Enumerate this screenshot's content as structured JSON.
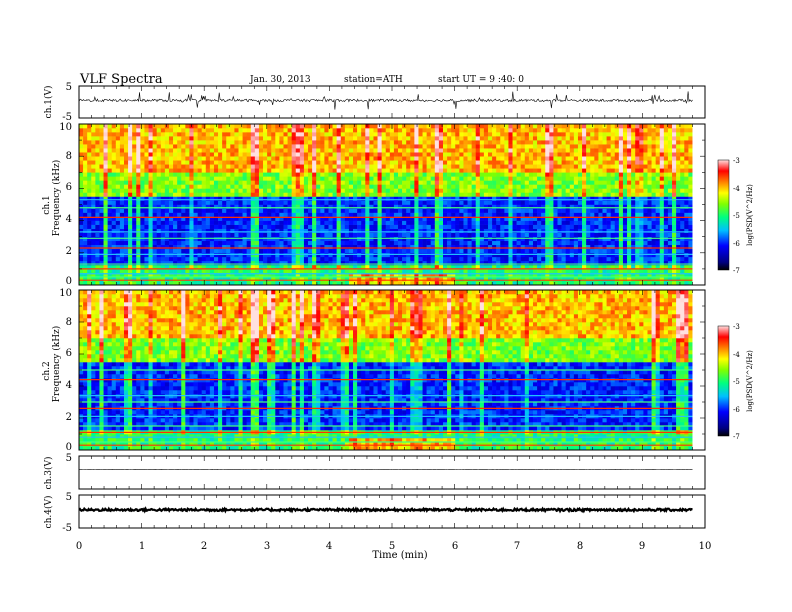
{
  "chart_data": {
    "type": "heatmap",
    "title": "VLF  Spectra",
    "header": {
      "date": "Jan. 30, 2013",
      "station": "station=ATH",
      "start": "start  UT  =   9 :40: 0"
    },
    "xlabel": "Time  (min)",
    "xlim": [
      0,
      10
    ],
    "xticks": [
      "0",
      "1",
      "2",
      "3",
      "4",
      "5",
      "6",
      "7",
      "8",
      "9",
      "10"
    ],
    "data_end_min": 9.8,
    "panels": [
      {
        "id": "ch1-waveform",
        "type": "line",
        "ylabel": "ch.1(V)",
        "ylim": [
          -5,
          5
        ],
        "yticks": [
          "5",
          "-5"
        ],
        "baseline_v": 0.5,
        "noise_v": 0.4,
        "burst_v": 2.5
      },
      {
        "id": "ch1-spectrogram",
        "type": "heatmap",
        "ylabel_top": "ch.1",
        "ylabel": "Frequency  (kHz)",
        "ylim": [
          0,
          10
        ],
        "yticks": [
          "0",
          "2",
          "4",
          "6",
          "8",
          "10"
        ],
        "colorbar": {
          "label": "log(PSD(V^2/Hz)",
          "range": [
            -7,
            -3
          ],
          "ticks": [
            "-3",
            "-4",
            "-5",
            "-6",
            "-7"
          ]
        },
        "lines_khz": [
          0.3,
          0.5,
          0.7,
          1.0,
          1.3,
          1.9,
          2.3,
          2.9,
          3.3,
          4.2,
          4.8,
          5.3
        ],
        "band_shift_min": 4.3
      },
      {
        "id": "ch2-spectrogram",
        "type": "heatmap",
        "ylabel_top": "ch.2",
        "ylabel": "Frequency  (kHz)",
        "ylim": [
          0,
          10
        ],
        "yticks": [
          "0",
          "2",
          "4",
          "6",
          "8",
          "10"
        ],
        "colorbar": {
          "label": "log(PSD(V^2/Hz)",
          "range": [
            -7,
            -3
          ],
          "ticks": [
            "-3",
            "-4",
            "-5",
            "-6",
            "-7"
          ]
        },
        "lines_khz": [
          0.3,
          0.5,
          0.8,
          1.1,
          1.5,
          2.1,
          2.6,
          3.0,
          3.4,
          4.4,
          5.0
        ],
        "band_shift_min": 4.3
      },
      {
        "id": "ch3-waveform",
        "type": "line",
        "ylabel": "ch.3(V)",
        "ylim": [
          -5,
          5
        ],
        "yticks": [
          "5"
        ],
        "baseline_v": 0.9,
        "noise_v": 0.05,
        "burst_v": 0
      },
      {
        "id": "ch4-waveform",
        "type": "line",
        "ylabel": "ch.4(V)",
        "ylim": [
          -5,
          5
        ],
        "yticks": [
          "5",
          "-5"
        ],
        "baseline_v": 0.5,
        "noise_v": 0.35,
        "burst_v": 0
      }
    ]
  }
}
